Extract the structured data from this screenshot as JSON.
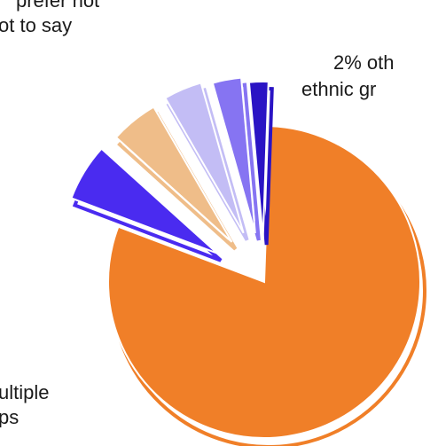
{
  "chart_data": {
    "type": "pie",
    "slices": [
      {
        "value": 81,
        "color": "#f07f28"
      },
      {
        "value": 6,
        "color": "#4a2bf0"
      },
      {
        "value": 5,
        "color": "#efbd89"
      },
      {
        "value": 4,
        "color": "#c3bdf5"
      },
      {
        "value": 3,
        "color": "#8674f2"
      },
      {
        "value": 2,
        "color": "#2a14c4"
      }
    ],
    "labels": {
      "prefer_not_line1": "prefer not",
      "prefer_not_line2": "ot to say",
      "other_line1": "2% oth",
      "other_line2": "ethnic gr",
      "multiple_line1": "ultiple",
      "multiple_line2": "ps"
    }
  }
}
